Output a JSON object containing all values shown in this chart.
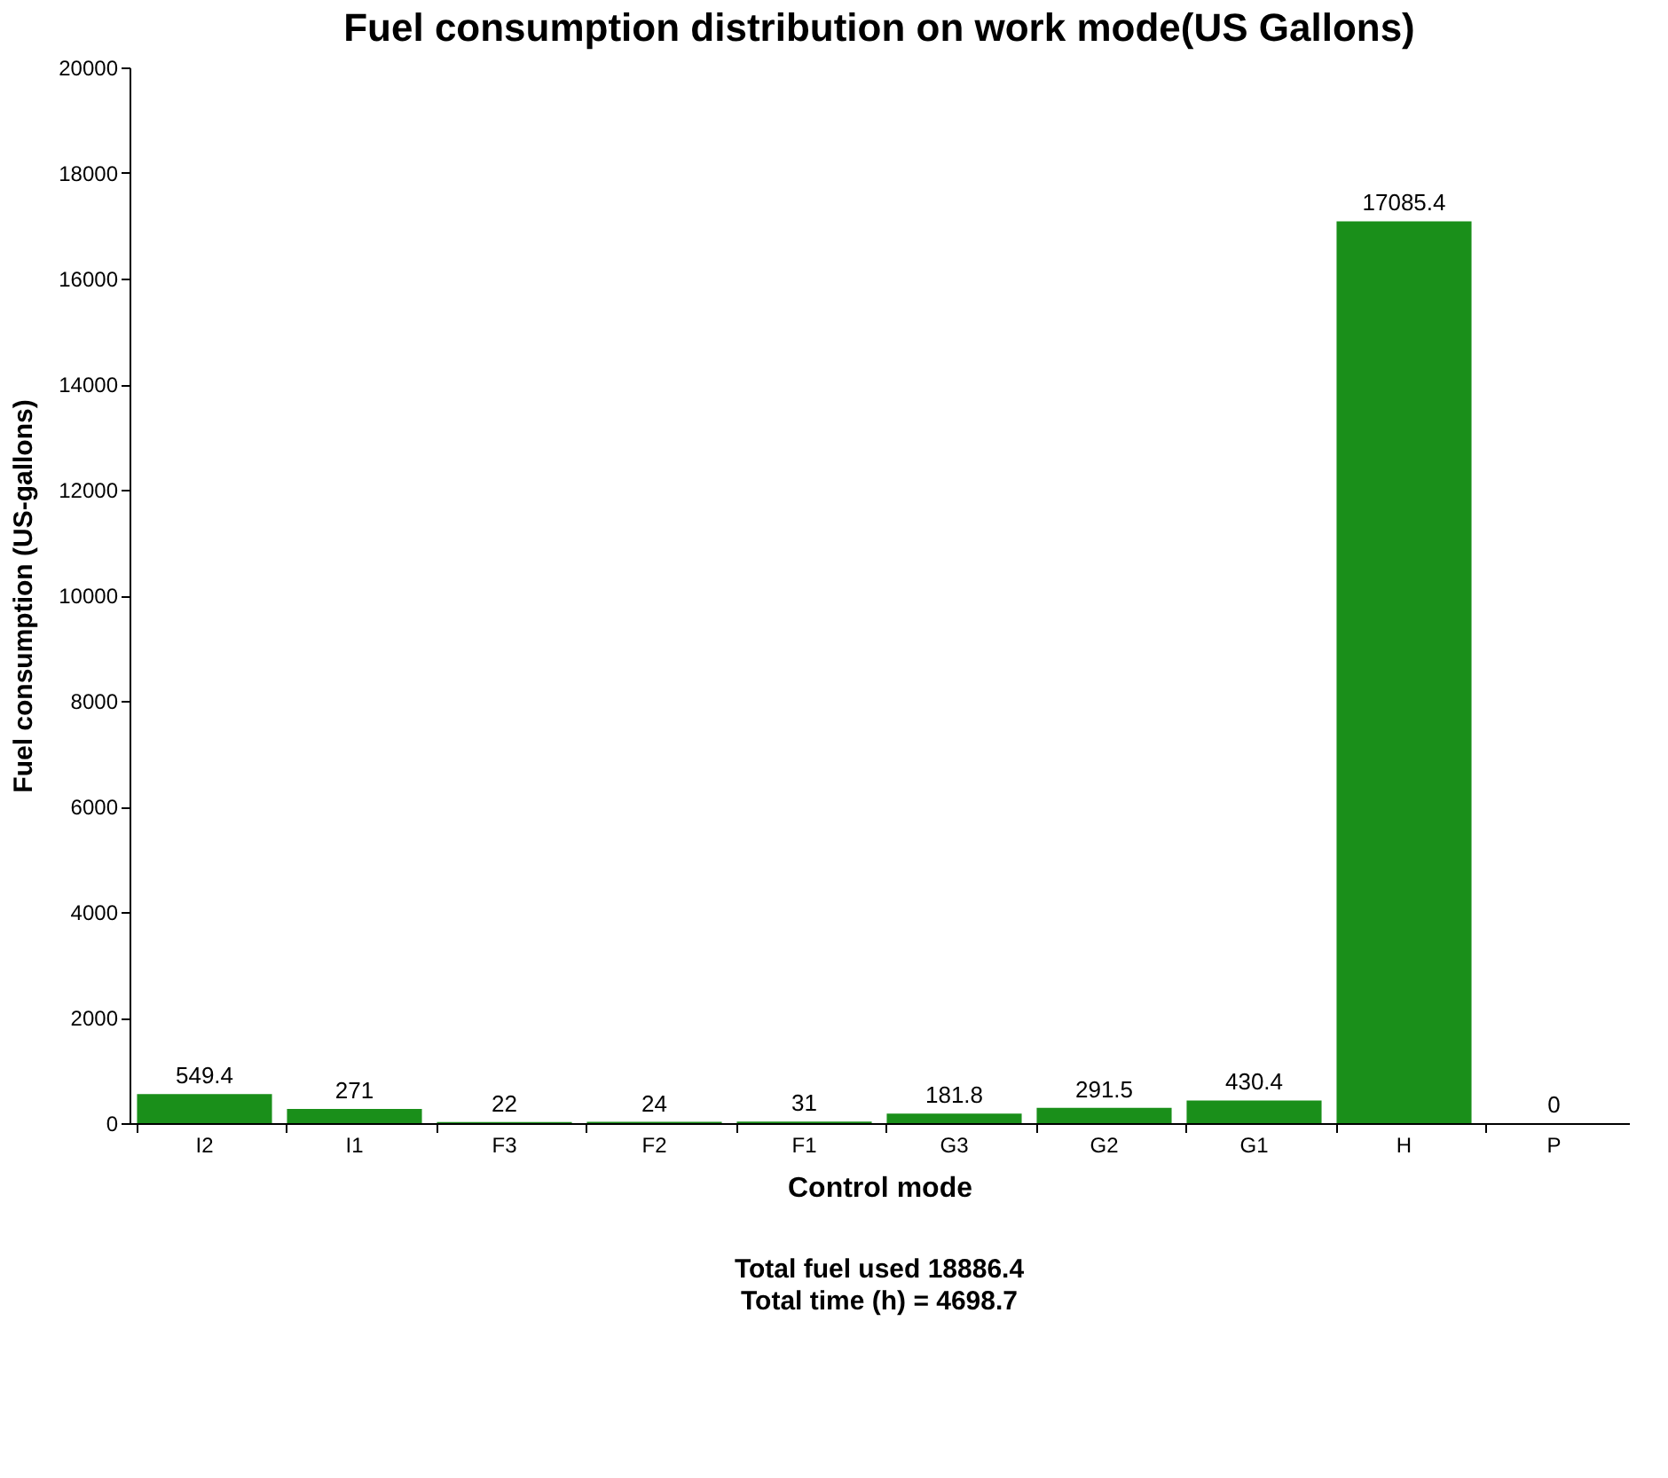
{
  "chart_data": {
    "type": "bar",
    "title": "Fuel consumption distribution on work mode(US Gallons)",
    "xlabel": "Control mode",
    "ylabel": "Fuel consumption (US-gallons)",
    "categories": [
      "I2",
      "I1",
      "F3",
      "F2",
      "F1",
      "G3",
      "G2",
      "G1",
      "H",
      "P"
    ],
    "values": [
      549.4,
      271,
      22,
      24,
      31,
      181.8,
      291.5,
      430.4,
      17085.4,
      0
    ],
    "color": "#1a8f1a",
    "ylim": [
      0,
      20000
    ],
    "yticks": [
      0,
      2000,
      4000,
      6000,
      8000,
      10000,
      12000,
      14000,
      16000,
      18000,
      20000
    ],
    "grid": false,
    "data_labels": true,
    "annotations": [
      "Total fuel used 18886.4",
      "Total time (h) = 4698.7"
    ]
  }
}
